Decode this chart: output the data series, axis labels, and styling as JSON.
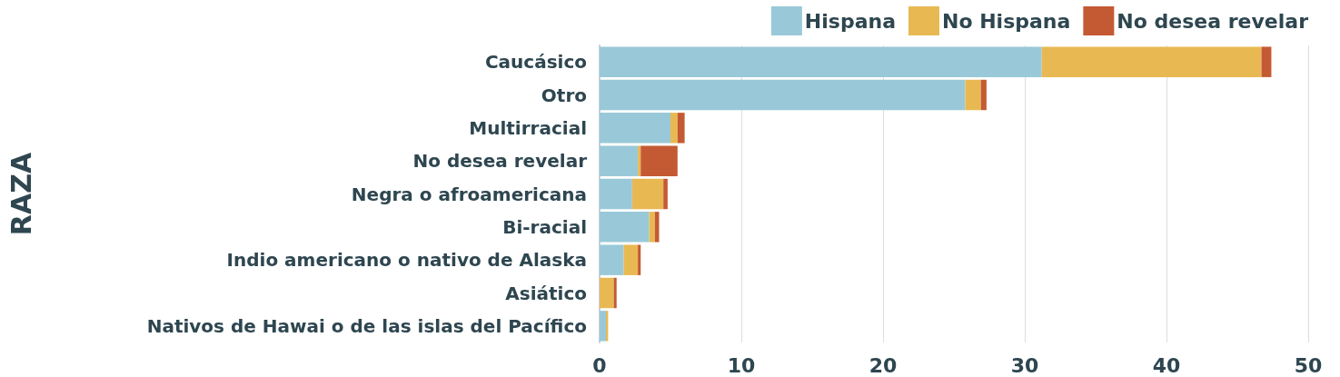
{
  "chart_data": {
    "type": "bar",
    "orientation": "horizontal",
    "stacked": true,
    "ylabel": "RAZA",
    "categories": [
      "Caucásico",
      "Otro",
      "Multirracial",
      "No desea revelar",
      "Negra o afroamericana",
      "Bi-racial",
      "Indio americano o nativo de Alaska",
      "Asiático",
      "Nativos de Hawai o de las islas del Pacífico"
    ],
    "series": [
      {
        "name": "Hispana",
        "color": "#99c9d8",
        "values": [
          31.2,
          25.8,
          5.0,
          2.7,
          2.3,
          3.5,
          1.7,
          0,
          0.45
        ]
      },
      {
        "name": "No Hispana",
        "color": "#e8b952",
        "values": [
          15.5,
          1.1,
          0.5,
          0.2,
          2.2,
          0.4,
          1.0,
          1.0,
          0.15
        ]
      },
      {
        "name": "No desea revelar",
        "color": "#c45a33",
        "values": [
          0.7,
          0.4,
          0.5,
          2.6,
          0.3,
          0.3,
          0.2,
          0.2,
          0
        ]
      }
    ],
    "xlim": [
      0,
      50
    ],
    "xticks": [
      0,
      10,
      20,
      30,
      40,
      50
    ],
    "grid": "x",
    "legend": "top right"
  }
}
